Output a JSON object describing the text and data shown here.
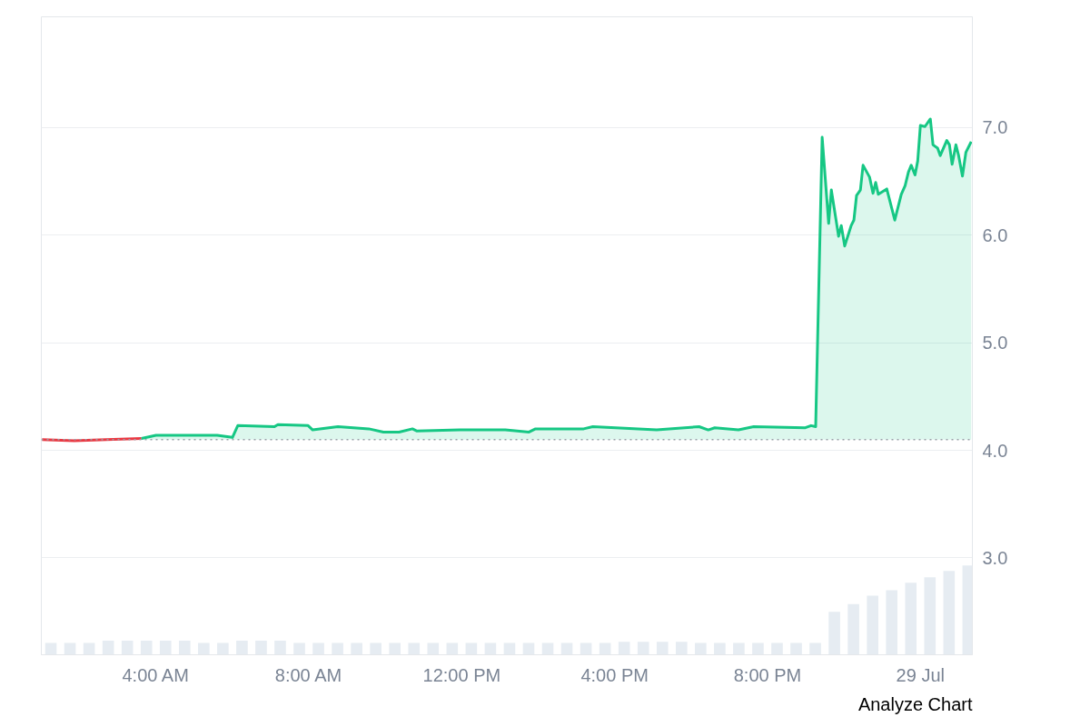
{
  "chart_data": {
    "type": "area",
    "xlim": [
      1.0,
      25.36
    ],
    "ylim": [
      2.1,
      8.03
    ],
    "xticks": [
      {
        "value": 4,
        "label": "4:00 AM"
      },
      {
        "value": 8,
        "label": "8:00 AM"
      },
      {
        "value": 12,
        "label": "12:00 PM"
      },
      {
        "value": 16,
        "label": "4:00 PM"
      },
      {
        "value": 20,
        "label": "8:00 PM"
      },
      {
        "value": 24,
        "label": "29 Jul"
      }
    ],
    "yticks": [
      {
        "value": 3,
        "label": "3.0"
      },
      {
        "value": 4,
        "label": "4.0"
      },
      {
        "value": 5,
        "label": "5.0"
      },
      {
        "value": 6,
        "label": "6.0"
      },
      {
        "value": 7,
        "label": "7.0"
      }
    ],
    "grid": "y",
    "ref_lines": [
      {
        "axis": "y",
        "value": 4.1,
        "color": "#9aa1a9",
        "line_style": "dotted"
      }
    ],
    "annotations": [
      "Analyze Chart"
    ],
    "series": [
      {
        "type": "bar",
        "color": "#e6ecf2",
        "x": [
          1.25,
          1.75,
          2.25,
          2.75,
          3.25,
          3.75,
          4.25,
          4.75,
          5.25,
          5.75,
          6.25,
          6.75,
          7.25,
          7.75,
          8.25,
          8.75,
          9.25,
          9.75,
          10.25,
          10.75,
          11.25,
          11.75,
          12.25,
          12.75,
          13.25,
          13.75,
          14.25,
          14.75,
          15.25,
          15.75,
          16.25,
          16.75,
          17.25,
          17.75,
          18.25,
          18.75,
          19.25,
          19.75,
          20.25,
          20.75,
          21.25,
          21.75,
          22.25,
          22.75,
          23.25,
          23.75,
          24.25,
          24.75,
          25.25
        ],
        "values": [
          2.21,
          2.21,
          2.21,
          2.23,
          2.23,
          2.23,
          2.23,
          2.23,
          2.21,
          2.21,
          2.23,
          2.23,
          2.23,
          2.21,
          2.21,
          2.21,
          2.21,
          2.21,
          2.21,
          2.21,
          2.21,
          2.21,
          2.21,
          2.21,
          2.21,
          2.21,
          2.21,
          2.21,
          2.21,
          2.21,
          2.22,
          2.22,
          2.22,
          2.22,
          2.21,
          2.21,
          2.21,
          2.21,
          2.21,
          2.21,
          2.21,
          2.5,
          2.57,
          2.65,
          2.7,
          2.77,
          2.82,
          2.88,
          2.93
        ]
      },
      {
        "type": "line",
        "color": "#ea3943",
        "x": [
          1.02,
          1.86,
          2.7,
          3.62
        ],
        "values": [
          4.1,
          4.09,
          4.1,
          4.11
        ]
      },
      {
        "color": "#16c784",
        "x": [
          3.62,
          4.0,
          5.6,
          6.0,
          6.14,
          7.1,
          7.19,
          7.98,
          8.1,
          8.76,
          9.57,
          9.95,
          10.36,
          10.71,
          10.83,
          11.95,
          13.14,
          13.76,
          13.93,
          15.19,
          15.43,
          17.1,
          18.21,
          18.45,
          18.62,
          19.24,
          19.64,
          20.99,
          21.14,
          21.26,
          21.43,
          21.6,
          21.67,
          21.86,
          21.93,
          22.02,
          22.19,
          22.26,
          22.33,
          22.43,
          22.5,
          22.67,
          22.76,
          22.83,
          22.9,
          23.12,
          23.33,
          23.5,
          23.6,
          23.69,
          23.76,
          23.86,
          23.93,
          24.0,
          24.12,
          24.26,
          24.33,
          24.45,
          24.52,
          24.69,
          24.76,
          24.83,
          24.93,
          25.0,
          25.1,
          25.19,
          25.33
        ],
        "values": [
          4.11,
          4.14,
          4.14,
          4.12,
          4.23,
          4.22,
          4.24,
          4.23,
          4.19,
          4.22,
          4.2,
          4.17,
          4.17,
          4.2,
          4.18,
          4.19,
          4.19,
          4.17,
          4.2,
          4.2,
          4.22,
          4.19,
          4.22,
          4.19,
          4.21,
          4.19,
          4.22,
          4.21,
          4.23,
          4.22,
          6.91,
          6.11,
          6.42,
          5.99,
          6.09,
          5.9,
          6.09,
          6.14,
          6.37,
          6.42,
          6.65,
          6.54,
          6.39,
          6.49,
          6.38,
          6.43,
          6.14,
          6.38,
          6.46,
          6.59,
          6.65,
          6.56,
          6.69,
          7.02,
          7.01,
          7.08,
          6.84,
          6.81,
          6.74,
          6.88,
          6.84,
          6.66,
          6.84,
          6.74,
          6.55,
          6.77,
          6.87
        ]
      }
    ]
  }
}
